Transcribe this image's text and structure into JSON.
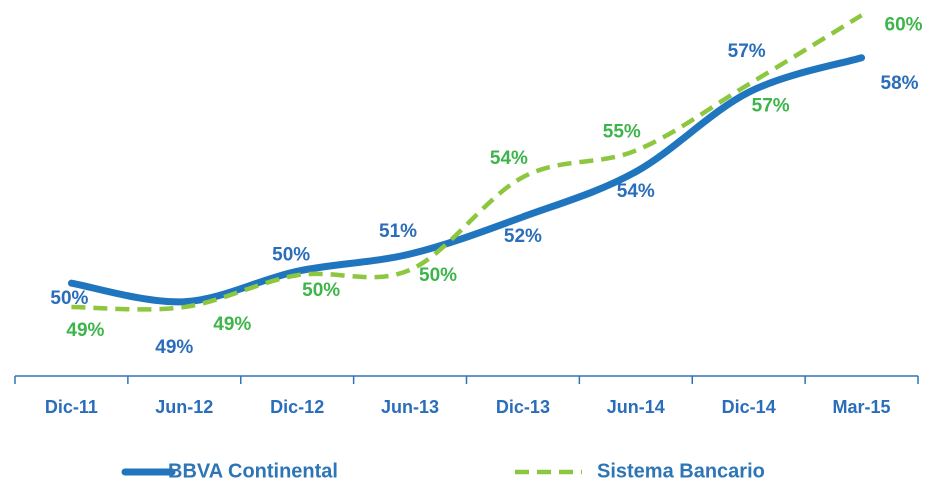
{
  "chart_data": {
    "type": "line",
    "categories": [
      "Dic-11",
      "Jun-12",
      "Dic-12",
      "Jun-13",
      "Dic-13",
      "Jun-14",
      "Dic-14",
      "Mar-15"
    ],
    "ylim": [
      46.4,
      60.2
    ],
    "series": [
      {
        "name": "BBVA Continental",
        "color": "#1f75be",
        "dashed": false,
        "values": [
          49.9,
          49.2,
          50.35,
          51.0,
          52.4,
          54.1,
          57.1,
          58.4
        ],
        "value_labels": [
          "50%",
          "49%",
          "50%",
          "51%",
          "52%",
          "54%",
          "57%",
          "58%"
        ]
      },
      {
        "name": "Sistema Bancario",
        "color": "#8dc63f",
        "dashed": true,
        "values": [
          49.0,
          49.0,
          50.2,
          50.4,
          53.9,
          54.9,
          57.4,
          60.0
        ],
        "value_labels": [
          "49%",
          "49%",
          "50%",
          "50%",
          "54%",
          "55%",
          "57%",
          "60%"
        ]
      }
    ]
  }
}
